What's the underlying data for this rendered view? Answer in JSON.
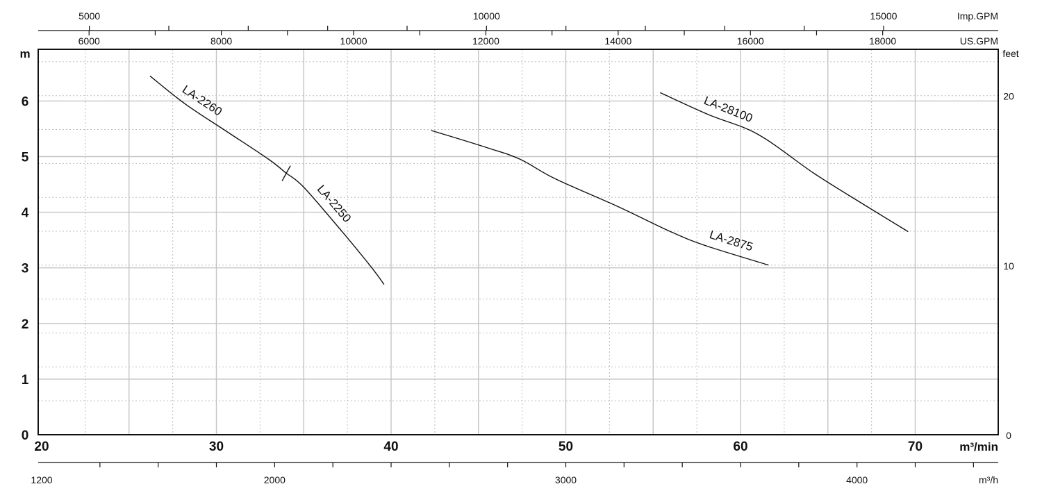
{
  "chart_data": {
    "type": "line",
    "x_axis": {
      "label": "m³/min",
      "range": [
        20,
        72
      ],
      "ticks": [
        20,
        30,
        40,
        50,
        60,
        70
      ]
    },
    "y_axis": {
      "label": "m",
      "range": [
        0,
        6.9
      ],
      "ticks": [
        0,
        1,
        2,
        3,
        4,
        5,
        6
      ]
    },
    "right_axis": {
      "label": "feet",
      "ticks": [
        0,
        10,
        20
      ]
    },
    "bottom_axis_2": {
      "label": "m³/h",
      "ticks": [
        1200,
        2000,
        3000,
        4000
      ]
    },
    "top_axis_us": {
      "label": "US.GPM",
      "ticks": [
        6000,
        8000,
        10000,
        12000,
        14000,
        16000,
        18000
      ]
    },
    "top_axis_imp": {
      "label": "Imp.GPM",
      "ticks": [
        5000,
        10000,
        15000
      ]
    },
    "grid": true,
    "series": [
      {
        "name": "LA-2260",
        "x": [
          26.2,
          28.2,
          30.6,
          33.0,
          34.0
        ],
        "y": [
          6.45,
          5.95,
          5.45,
          4.95,
          4.7
        ]
      },
      {
        "name": "LA-2250",
        "x": [
          34.0,
          35.0,
          37.2,
          38.9,
          39.6
        ],
        "y": [
          4.7,
          4.45,
          3.65,
          3.0,
          2.7
        ]
      },
      {
        "name": "LA-2875",
        "x": [
          42.3,
          45.6,
          47.4,
          49.4,
          53.0,
          56.0,
          58.0,
          61.6
        ],
        "y": [
          5.47,
          5.15,
          4.95,
          4.6,
          4.1,
          3.65,
          3.4,
          3.05
        ]
      },
      {
        "name": "LA-28100",
        "x": [
          55.4,
          58.2,
          61.0,
          64.2,
          67.0,
          69.6
        ],
        "y": [
          6.15,
          5.75,
          5.4,
          4.7,
          4.15,
          3.65
        ]
      }
    ],
    "break_marks": [
      {
        "x": 34.0,
        "y": 4.7
      }
    ]
  }
}
